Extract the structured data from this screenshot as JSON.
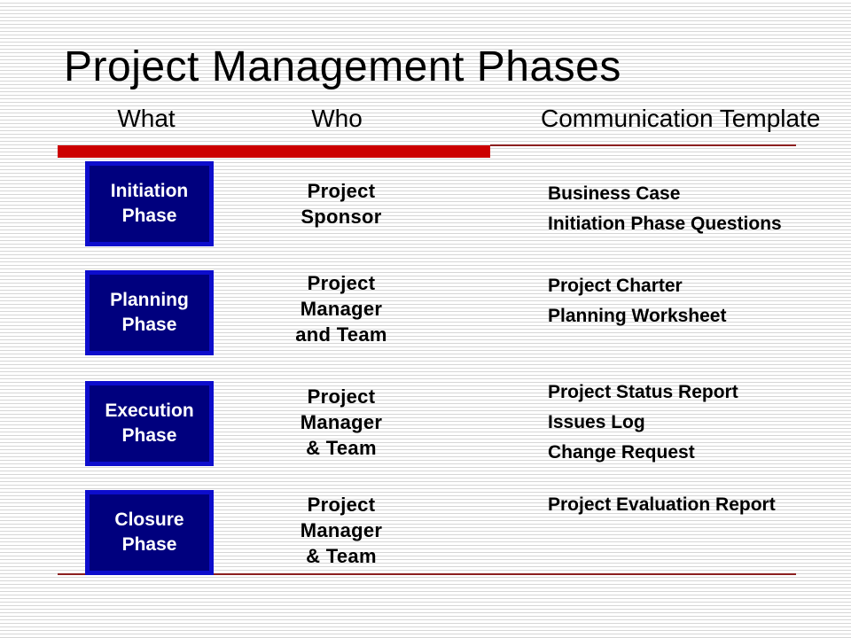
{
  "slide": {
    "title": "Project Management Phases",
    "headers": {
      "what": "What",
      "who": "Who",
      "communication": "Communication Template"
    }
  },
  "rows": [
    {
      "phase": "Initiation\nPhase",
      "who": "Project\nSponsor",
      "communication": "Business Case\nInitiation Phase Questions"
    },
    {
      "phase": "Planning\nPhase",
      "who": "Project\nManager\nand Team",
      "communication": "Project Charter\nPlanning Worksheet"
    },
    {
      "phase": "Execution\nPhase",
      "who": "Project\nManager\n& Team",
      "communication": "Project Status Report\nIssues Log\nChange Request"
    },
    {
      "phase": "Closure\nPhase",
      "who": "Project\nManager\n& Team",
      "communication": "Project Evaluation Report"
    }
  ],
  "colors": {
    "accent_red_bar": "#cc0000",
    "divider_line_dark_red": "#8b1f1f",
    "phase_box_fill": "#00007e",
    "phase_box_border": "#0d0dcc",
    "phase_box_text": "#ffffff",
    "background_stripe": "#d6d6d6"
  }
}
